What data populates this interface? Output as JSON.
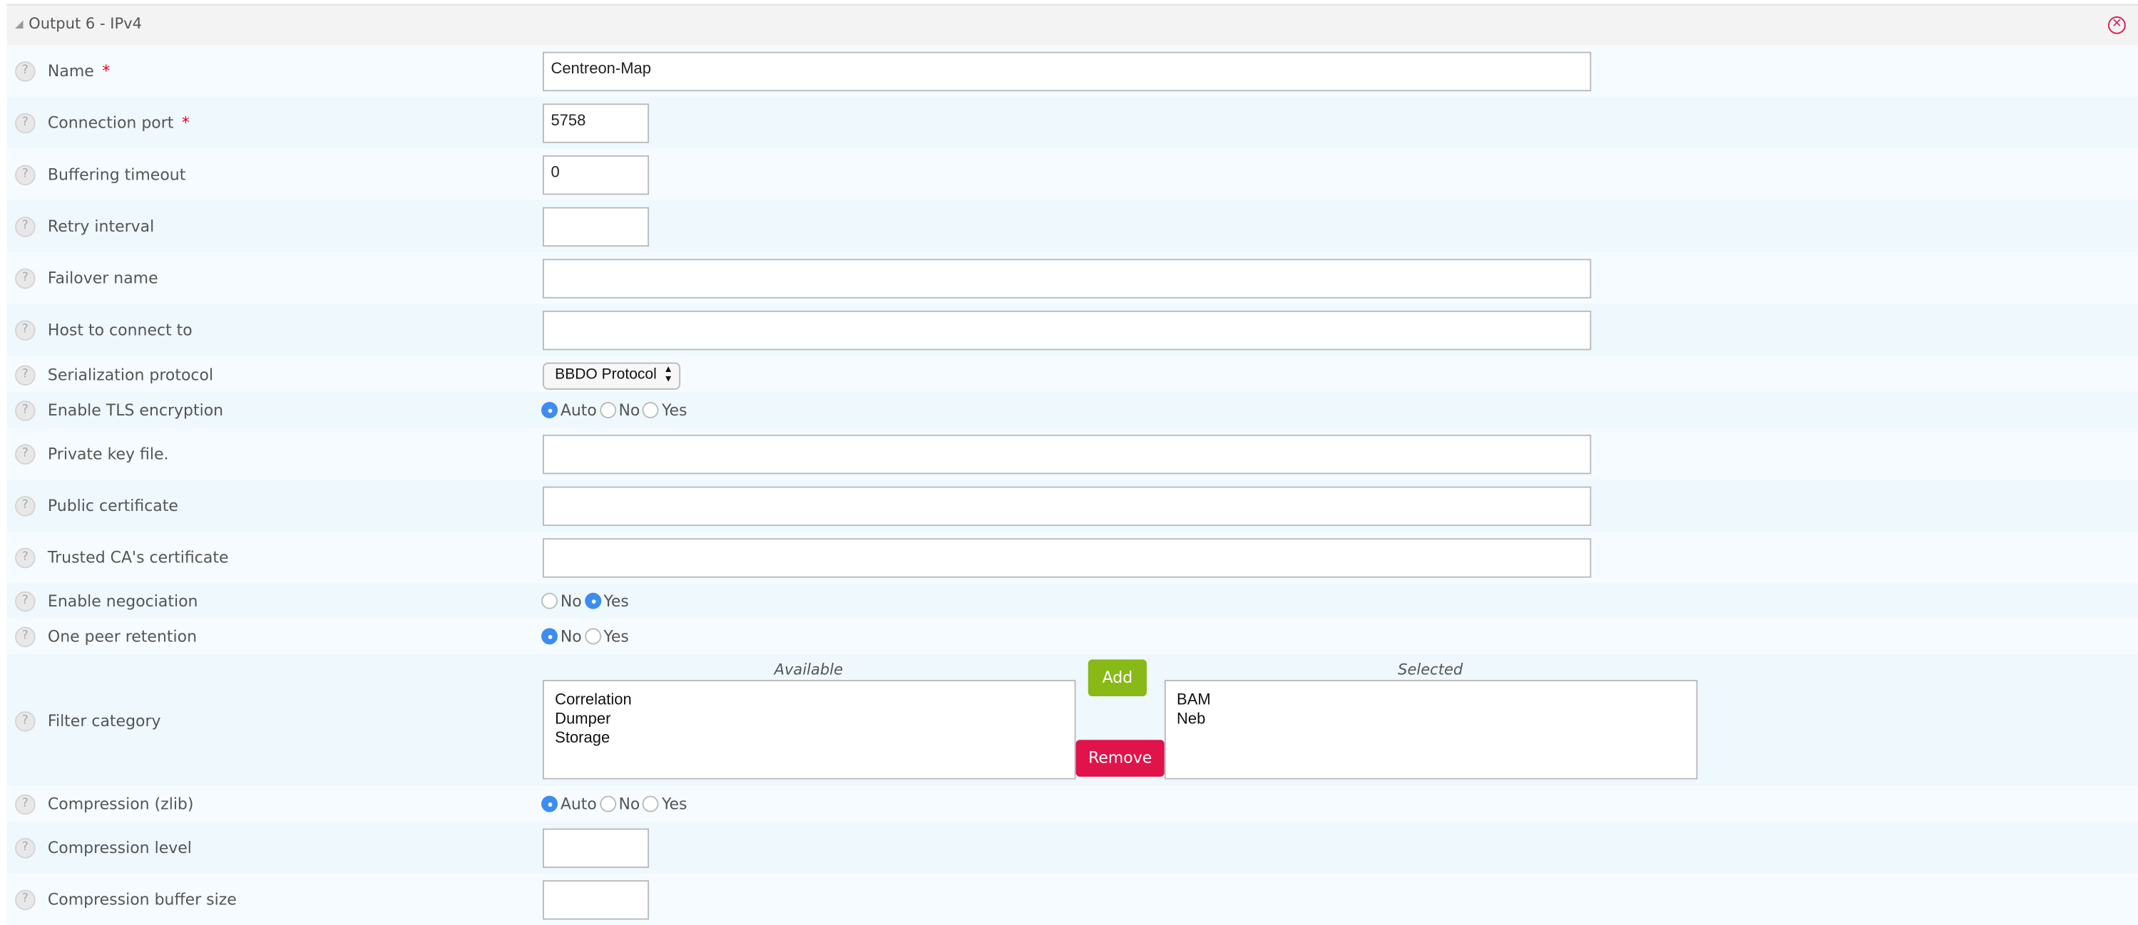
{
  "header": {
    "title": "Output 6 - IPv4",
    "collapse_icon": "triangle-collapse-icon",
    "close_icon": "circle-x-icon"
  },
  "colors": {
    "accent": "#3d8cf0",
    "add_button": "#88b917",
    "remove_button": "#e0134a",
    "required": "#e8001c"
  },
  "fields": [
    {
      "label": "Name",
      "required": true,
      "type": "text-wide",
      "value": "Centreon-Map"
    },
    {
      "label": "Connection port",
      "required": true,
      "type": "text-small",
      "value": "5758"
    },
    {
      "label": "Buffering timeout",
      "type": "text-small",
      "value": "0"
    },
    {
      "label": "Retry interval",
      "type": "text-small",
      "value": ""
    },
    {
      "label": "Failover name",
      "type": "text-wide",
      "value": ""
    },
    {
      "label": "Host to connect to",
      "type": "text-wide",
      "value": ""
    },
    {
      "label": "Serialization protocol",
      "type": "select",
      "value": "BBDO Protocol"
    },
    {
      "label": "Enable TLS encryption",
      "type": "radio",
      "options": [
        "Auto",
        "No",
        "Yes"
      ],
      "selected": "Auto"
    },
    {
      "label": "Private key file.",
      "type": "text-wide",
      "value": ""
    },
    {
      "label": "Public certificate",
      "type": "text-wide",
      "value": ""
    },
    {
      "label": "Trusted CA's certificate",
      "type": "text-wide",
      "value": ""
    },
    {
      "label": "Enable negociation",
      "type": "radio",
      "options": [
        "No",
        "Yes"
      ],
      "selected": "Yes"
    },
    {
      "label": "One peer retention",
      "type": "radio",
      "options": [
        "No",
        "Yes"
      ],
      "selected": "No"
    },
    {
      "label": "Filter category",
      "type": "multiselect",
      "available_caption": "Available",
      "selected_caption": "Selected",
      "available": [
        "Correlation",
        "Dumper",
        "Storage"
      ],
      "selected_items": [
        "BAM",
        "Neb"
      ],
      "add_label": "Add",
      "remove_label": "Remove"
    },
    {
      "label": "Compression (zlib)",
      "type": "radio",
      "options": [
        "Auto",
        "No",
        "Yes"
      ],
      "selected": "Auto"
    },
    {
      "label": "Compression level",
      "type": "text-small",
      "value": ""
    },
    {
      "label": "Compression buffer size",
      "type": "text-small",
      "value": ""
    }
  ]
}
